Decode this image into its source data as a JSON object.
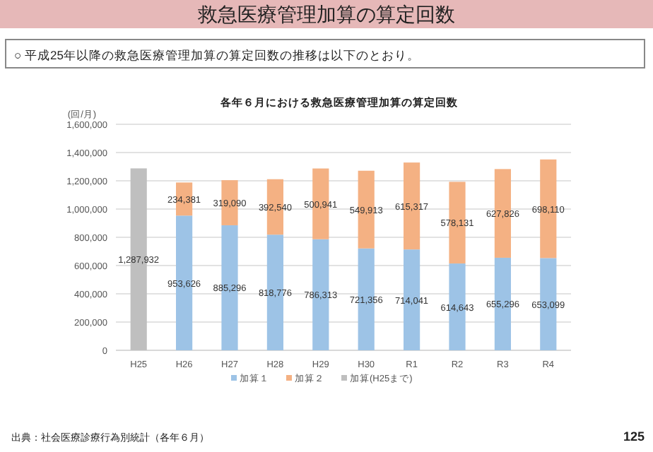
{
  "chart_data": {
    "type": "bar",
    "stacked": true,
    "title": "救急医療管理加算の算定回数",
    "subtitle": "各年６月における救急医療管理加算の算定回数",
    "ylabel": "(回/月)",
    "categories": [
      "H25",
      "H26",
      "H27",
      "H28",
      "H29",
      "H30",
      "R1",
      "R2",
      "R3",
      "R4"
    ],
    "series": [
      {
        "name": "加算１",
        "color": "#9dc3e6",
        "values": [
          null,
          953626,
          885296,
          818776,
          786313,
          721356,
          714041,
          614643,
          655296,
          653099
        ],
        "value_labels": [
          null,
          "953,626",
          "885,296",
          "818,776",
          "786,313",
          "721,356",
          "714,041",
          "614,643",
          "655,296",
          "653,099"
        ]
      },
      {
        "name": "加算２",
        "color": "#f4b183",
        "values": [
          null,
          234381,
          319090,
          392540,
          500941,
          549913,
          615317,
          578131,
          627826,
          698110
        ],
        "value_labels": [
          null,
          "234,381",
          "319,090",
          "392,540",
          "500,941",
          "549,913",
          "615,317",
          "578,131",
          "627,826",
          "698,110"
        ]
      },
      {
        "name": "加算(H25まで)",
        "color": "#bfbfbf",
        "values": [
          1287932,
          null,
          null,
          null,
          null,
          null,
          null,
          null,
          null,
          null
        ],
        "value_labels": [
          "1,287,932",
          null,
          null,
          null,
          null,
          null,
          null,
          null,
          null,
          null
        ]
      }
    ],
    "ylim": [
      0,
      1600000
    ],
    "yticks": [
      {
        "value": 0,
        "label": "0"
      },
      {
        "value": 200000,
        "label": "200,000"
      },
      {
        "value": 400000,
        "label": "400,000"
      },
      {
        "value": 600000,
        "label": "600,000"
      },
      {
        "value": 800000,
        "label": "800,000"
      },
      {
        "value": 1000000,
        "label": "1,000,000"
      },
      {
        "value": 1200000,
        "label": "1,200,000"
      },
      {
        "value": 1400000,
        "label": "1,400,000"
      },
      {
        "value": 1600000,
        "label": "1,600,000"
      }
    ],
    "grid": "y",
    "legend": "bottom",
    "annotations": [
      "○ 平成25年以降の救急医療管理加算の算定回数の推移は以下のとおり。",
      "出典：社会医療診療行為別統計（各年６月）",
      "125"
    ]
  }
}
